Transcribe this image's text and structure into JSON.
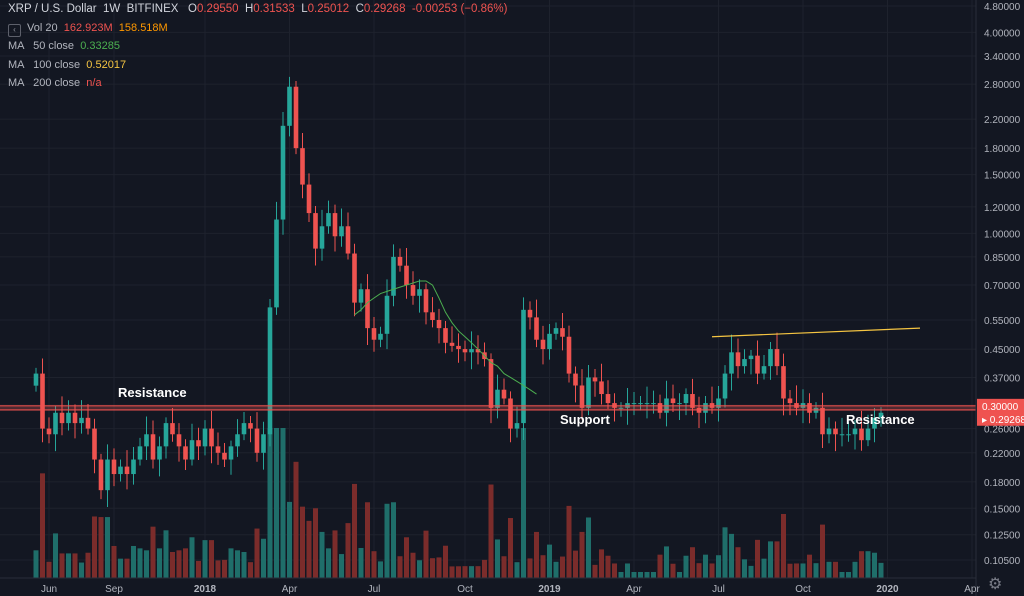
{
  "header": {
    "symbol": "XRP / U.S. Dollar",
    "interval": "1W",
    "exchange": "BITFINEX",
    "open_label": "O",
    "open": "0.29550",
    "high_label": "H",
    "high": "0.31533",
    "low_label": "L",
    "low": "0.25012",
    "close_label": "C",
    "close": "0.29268",
    "change": "-0.00253 (−0.86%)"
  },
  "indicators": {
    "vol": {
      "label": "Vol 20",
      "value1": "162.923M",
      "value2": "158.518M"
    },
    "ma50": {
      "label": "MA",
      "params": "50 close",
      "value": "0.33285",
      "color": "#4caf50"
    },
    "ma100": {
      "label": "MA",
      "params": "100 close",
      "value": "0.52017",
      "color": "#f5c542"
    },
    "ma200": {
      "label": "MA",
      "params": "200 close",
      "value": "n/a",
      "color": "#ef5350"
    }
  },
  "colors": {
    "background": "#131722",
    "grid": "#1e222d",
    "up": "#26a69a",
    "down": "#ef5350",
    "vol_up": "#1f6e6a",
    "vol_down": "#7b2c2b",
    "level_line": "#ef5350"
  },
  "chart_data": {
    "type": "candlestick",
    "scale": "log",
    "y_ticks": [
      "4.80000",
      "4.00000",
      "3.40000",
      "2.80000",
      "2.20000",
      "1.80000",
      "1.50000",
      "1.20000",
      "1.00000",
      "0.85000",
      "0.70000",
      "0.55000",
      "0.45000",
      "0.37000",
      "0.30000",
      "0.26000",
      "0.22000",
      "0.18000",
      "0.15000",
      "0.12500",
      "0.10500"
    ],
    "y_tick_values": [
      4.8,
      4.0,
      3.4,
      2.8,
      2.2,
      1.8,
      1.5,
      1.2,
      1.0,
      0.85,
      0.7,
      0.55,
      0.45,
      0.37,
      0.3,
      0.26,
      0.22,
      0.18,
      0.15,
      0.125,
      0.105
    ],
    "x_ticks": [
      "Jun",
      "Sep",
      "2018",
      "Apr",
      "Jul",
      "Oct",
      "2019",
      "Apr",
      "Jul",
      "Oct",
      "2020",
      "Apr"
    ],
    "x_tick_weeks": [
      2,
      12,
      26,
      39,
      52,
      66,
      79,
      92,
      105,
      118,
      131,
      144
    ],
    "price_labels": {
      "level": "0.30000",
      "last": "0.29268"
    },
    "level_price": 0.3,
    "annotations": [
      {
        "text": "Resistance",
        "week": 12
      },
      {
        "text": "Support",
        "week": 80
      },
      {
        "text": "Resistance",
        "week": 124
      }
    ],
    "close": [
      0.38,
      0.26,
      0.25,
      0.29,
      0.27,
      0.29,
      0.27,
      0.28,
      0.26,
      0.21,
      0.17,
      0.21,
      0.19,
      0.2,
      0.19,
      0.21,
      0.23,
      0.25,
      0.21,
      0.23,
      0.27,
      0.25,
      0.23,
      0.21,
      0.24,
      0.23,
      0.26,
      0.23,
      0.22,
      0.21,
      0.23,
      0.25,
      0.27,
      0.26,
      0.22,
      0.25,
      0.6,
      1.1,
      2.1,
      2.75,
      1.8,
      1.4,
      1.15,
      0.9,
      1.05,
      1.15,
      0.98,
      1.05,
      0.87,
      0.62,
      0.68,
      0.52,
      0.48,
      0.5,
      0.65,
      0.85,
      0.8,
      0.7,
      0.65,
      0.68,
      0.58,
      0.55,
      0.52,
      0.47,
      0.46,
      0.45,
      0.44,
      0.45,
      0.44,
      0.42,
      0.3,
      0.34,
      0.32,
      0.26,
      0.27,
      0.59,
      0.56,
      0.48,
      0.45,
      0.5,
      0.52,
      0.49,
      0.38,
      0.35,
      0.3,
      0.37,
      0.36,
      0.33,
      0.31,
      0.3,
      0.3,
      0.31,
      0.31,
      0.31,
      0.31,
      0.31,
      0.29,
      0.32,
      0.31,
      0.31,
      0.33,
      0.3,
      0.29,
      0.31,
      0.3,
      0.32,
      0.38,
      0.44,
      0.4,
      0.42,
      0.43,
      0.38,
      0.4,
      0.45,
      0.4,
      0.32,
      0.31,
      0.3,
      0.31,
      0.29,
      0.3,
      0.25,
      0.26,
      0.25,
      0.25,
      0.25,
      0.26,
      0.24,
      0.26,
      0.28,
      0.29
    ],
    "ma50": {
      "start_week": 49,
      "values": [
        0.57,
        0.59,
        0.62,
        0.64,
        0.66,
        0.67,
        0.68,
        0.69,
        0.7,
        0.71,
        0.72,
        0.72,
        0.7,
        0.64,
        0.58,
        0.54,
        0.51,
        0.49,
        0.47,
        0.45,
        0.43,
        0.41,
        0.4,
        0.38,
        0.37,
        0.36,
        0.35,
        0.34,
        0.33
      ]
    },
    "ma100": {
      "start_week": 104,
      "end_week": 136,
      "start": 0.49,
      "end": 0.52
    }
  }
}
